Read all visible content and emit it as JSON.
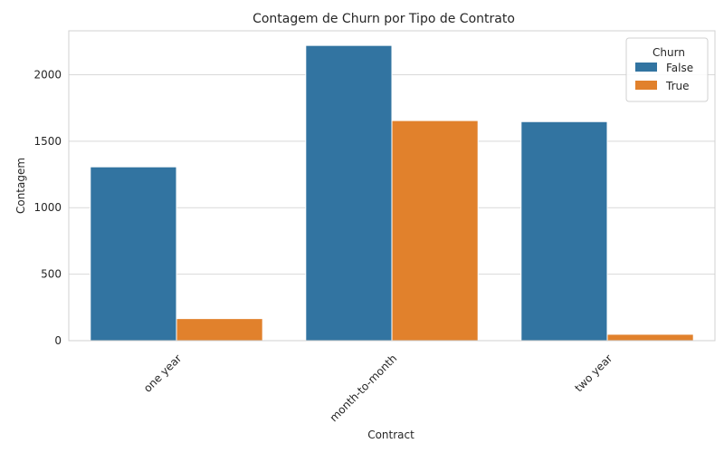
{
  "chart_data": {
    "type": "bar",
    "title": "Contagem de Churn por Tipo de Contrato",
    "xlabel": "Contract",
    "ylabel": "Contagem",
    "categories": [
      "one year",
      "month-to-month",
      "two year"
    ],
    "series": [
      {
        "name": "False",
        "color": "#3274a1",
        "values": [
          1307,
          2220,
          1647
        ]
      },
      {
        "name": "True",
        "color": "#e1812c",
        "values": [
          166,
          1655,
          48
        ]
      }
    ],
    "ylim": [
      0,
      2330
    ],
    "yticks": [
      0,
      500,
      1000,
      1500,
      2000
    ],
    "grid": true,
    "legend": {
      "title": "Churn",
      "placement": "top-right"
    }
  }
}
